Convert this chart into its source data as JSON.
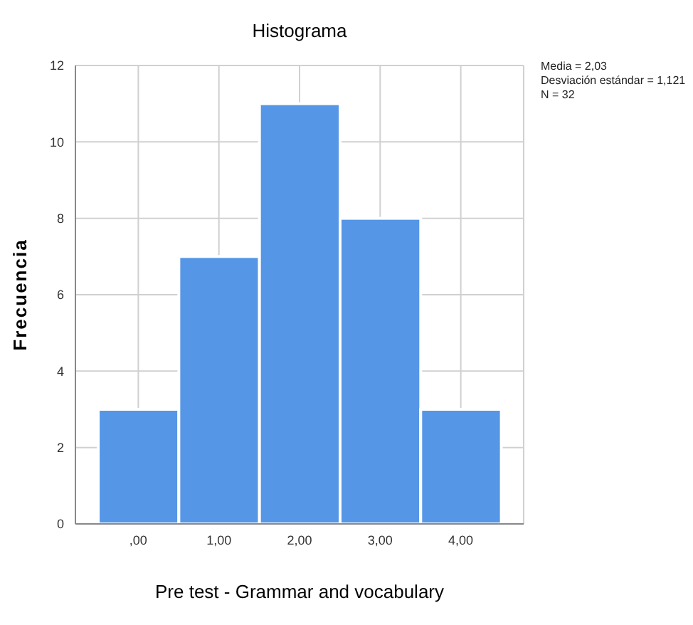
{
  "chart_data": {
    "type": "histogram",
    "title": "Histograma",
    "xlabel": "Pre test - Grammar and vocabulary",
    "ylabel": "Frecuencia",
    "bins": [
      -0.5,
      0.5,
      1.5,
      2.5,
      3.5,
      4.5
    ],
    "values": [
      3,
      7,
      11,
      8,
      3
    ],
    "color": "#5596e6",
    "xlim": [
      -0.78,
      4.78
    ],
    "xticks": [
      {
        "value": 0,
        "label": ",00"
      },
      {
        "value": 1,
        "label": "1,00"
      },
      {
        "value": 2,
        "label": "2,00"
      },
      {
        "value": 3,
        "label": "3,00"
      },
      {
        "value": 4,
        "label": "4,00"
      }
    ],
    "ylim": [
      0,
      12
    ],
    "yticks": [
      0,
      2,
      4,
      6,
      8,
      10,
      12
    ],
    "grid": true,
    "annotations": [
      "Media = 2,03",
      "Desviación estándar = 1,121",
      "N = 32"
    ]
  }
}
